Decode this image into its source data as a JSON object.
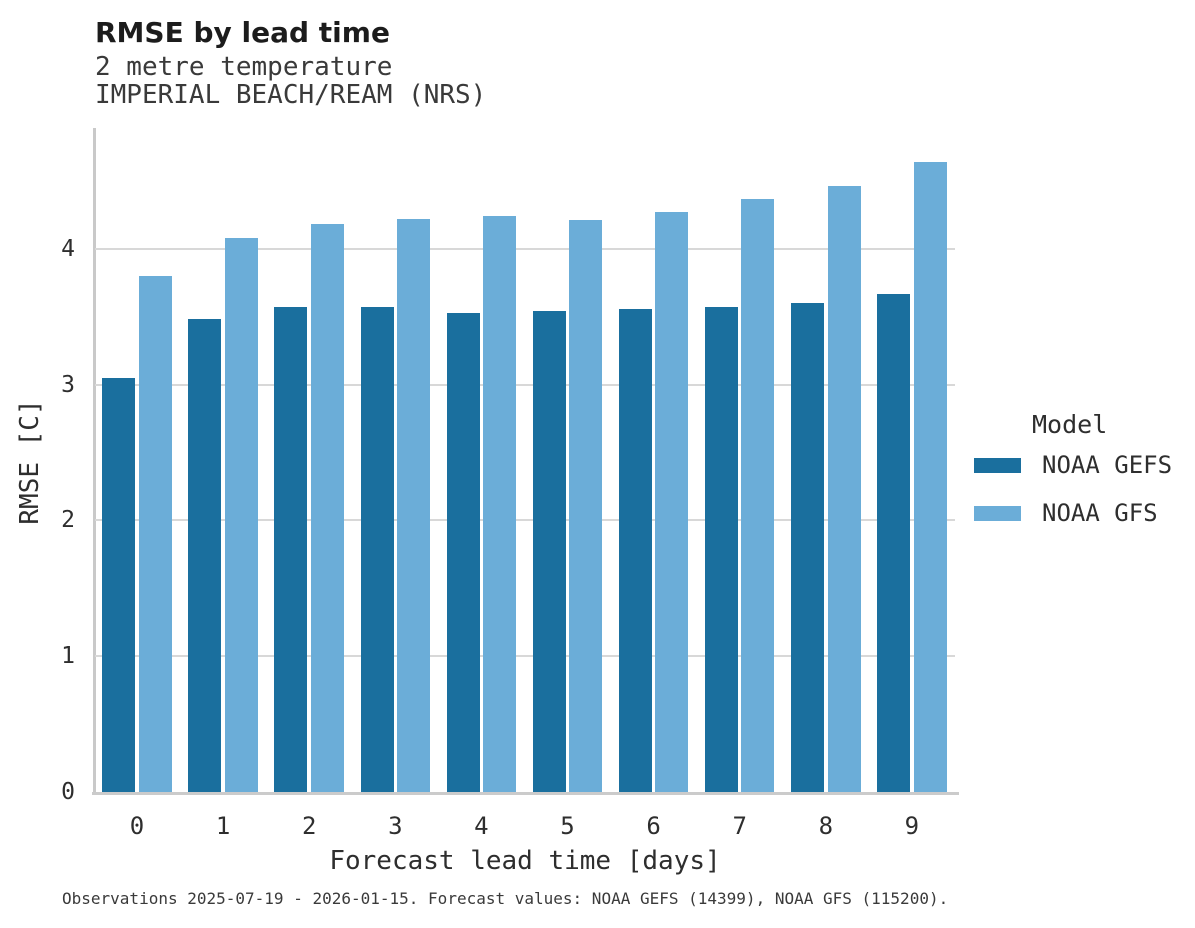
{
  "title": "RMSE by lead time",
  "subtitle_line1": "2 metre temperature",
  "subtitle_line2": "IMPERIAL BEACH/REAM (NRS)",
  "footer": "Observations 2025-07-19 - 2026-01-15. Forecast values: NOAA GEFS (14399), NOAA GFS (115200).",
  "legend": {
    "title": "Model",
    "entries": [
      {
        "label": "NOAA GEFS",
        "color": "#1a6f9e"
      },
      {
        "label": "NOAA GFS",
        "color": "#6badd8"
      }
    ]
  },
  "chart_data": {
    "type": "bar",
    "title": "RMSE by lead time",
    "subtitle": [
      "2 metre temperature",
      "IMPERIAL BEACH/REAM (NRS)"
    ],
    "xlabel": "Forecast lead time [days]",
    "ylabel": "RMSE [C]",
    "categories": [
      "0",
      "1",
      "2",
      "3",
      "4",
      "5",
      "6",
      "7",
      "8",
      "9"
    ],
    "series": [
      {
        "name": "NOAA GEFS",
        "color": "#1a6f9e",
        "values": [
          3.05,
          3.48,
          3.57,
          3.57,
          3.53,
          3.54,
          3.56,
          3.57,
          3.6,
          3.67
        ]
      },
      {
        "name": "NOAA GFS",
        "color": "#6badd8",
        "values": [
          3.8,
          4.08,
          4.18,
          4.22,
          4.24,
          4.21,
          4.27,
          4.37,
          4.46,
          4.64
        ]
      }
    ],
    "ylim": [
      0,
      4.89
    ],
    "yticks": [
      0,
      1,
      2,
      3,
      4
    ],
    "grid": "horizontal",
    "legend_position": "right",
    "caption": "Observations 2025-07-19 - 2026-01-15. Forecast values: NOAA GEFS (14399), NOAA GFS (115200)."
  },
  "colors": {
    "grid": "#d8d8d8",
    "axis": "#c9c9c9"
  }
}
